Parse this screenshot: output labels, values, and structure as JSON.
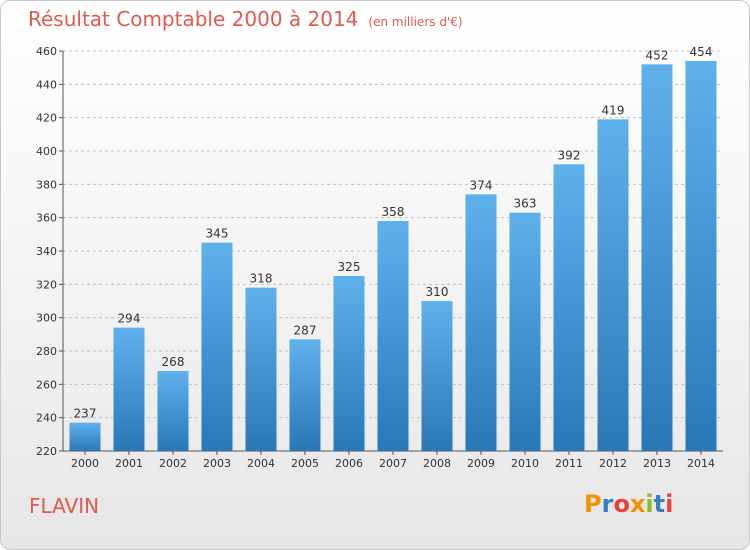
{
  "title": "Résultat Comptable 2000 à 2014",
  "subtitle": "(en milliers d'€)",
  "place": "FLAVIN",
  "logo": {
    "text": "Proxiti",
    "letters": [
      {
        "ch": "P",
        "color": "#f39200"
      },
      {
        "ch": "r",
        "color": "#3b7dc4"
      },
      {
        "ch": "o",
        "color": "#e8413c"
      },
      {
        "ch": "x",
        "color": "#f39200"
      },
      {
        "ch": "i",
        "color": "#8bbd2a"
      },
      {
        "ch": "t",
        "color": "#3b7dc4"
      },
      {
        "ch": "i",
        "color": "#e8413c"
      }
    ]
  },
  "colors": {
    "title": "#e05a4d",
    "bar_light": "#5fb1ec",
    "bar_dark": "#2a77b8",
    "grid": "#bfbfbf",
    "text": "#333333"
  },
  "chart_data": {
    "type": "bar",
    "categories": [
      "2000",
      "2001",
      "2002",
      "2003",
      "2004",
      "2005",
      "2006",
      "2007",
      "2008",
      "2009",
      "2010",
      "2011",
      "2012",
      "2013",
      "2014"
    ],
    "values": [
      237,
      294,
      268,
      345,
      318,
      287,
      325,
      358,
      310,
      374,
      363,
      392,
      419,
      452,
      454
    ],
    "ylim": [
      220,
      460
    ],
    "yticks": [
      220,
      240,
      260,
      280,
      300,
      320,
      340,
      360,
      380,
      400,
      420,
      440,
      460
    ],
    "grid": true,
    "data_labels": true
  }
}
